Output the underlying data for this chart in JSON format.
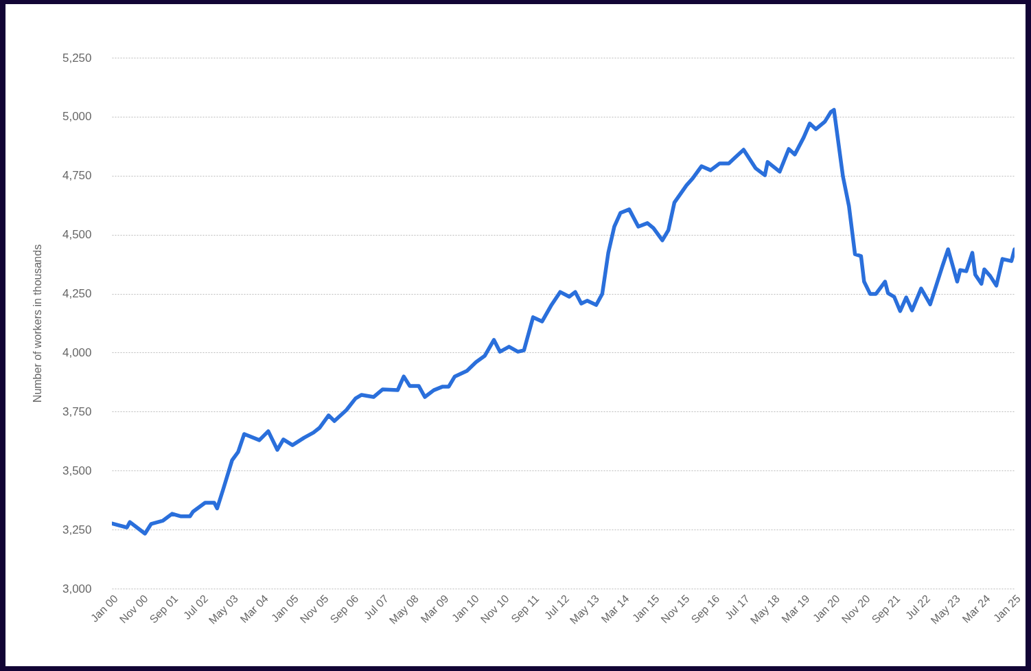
{
  "chart_data": {
    "type": "line",
    "ylabel": "Number of workers in thousands",
    "x": [
      "2000-01",
      "2000-06",
      "2000-07",
      "2000-09",
      "2000-12",
      "2001-02",
      "2001-06",
      "2001-09",
      "2001-12",
      "2002-03",
      "2002-04",
      "2002-08",
      "2002-11",
      "2002-12",
      "2003-02",
      "2003-05",
      "2003-07",
      "2003-09",
      "2004-02",
      "2004-05",
      "2004-08",
      "2004-10",
      "2005-01",
      "2005-05",
      "2005-08",
      "2005-10",
      "2006-01",
      "2006-03",
      "2006-07",
      "2006-10",
      "2006-12",
      "2007-04",
      "2007-07",
      "2007-12",
      "2008-02",
      "2008-04",
      "2008-07",
      "2008-09",
      "2008-12",
      "2009-03",
      "2009-05",
      "2009-07",
      "2009-11",
      "2010-02",
      "2010-05",
      "2010-08",
      "2010-10",
      "2011-01",
      "2011-04",
      "2011-06",
      "2011-09",
      "2011-12",
      "2012-03",
      "2012-06",
      "2012-09",
      "2012-11",
      "2013-01",
      "2013-03",
      "2013-06",
      "2013-08",
      "2013-10",
      "2013-12",
      "2014-02",
      "2014-05",
      "2014-08",
      "2014-11",
      "2015-01",
      "2015-04",
      "2015-06",
      "2015-08",
      "2015-12",
      "2016-02",
      "2016-05",
      "2016-08",
      "2016-11",
      "2017-02",
      "2017-04",
      "2017-07",
      "2017-11",
      "2018-02",
      "2018-03",
      "2018-07",
      "2018-10",
      "2018-12",
      "2019-03",
      "2019-05",
      "2019-07",
      "2019-10",
      "2019-12",
      "2020-01",
      "2020-04",
      "2020-06",
      "2020-08",
      "2020-10",
      "2020-11",
      "2021-01",
      "2021-03",
      "2021-06",
      "2021-07",
      "2021-09",
      "2021-11",
      "2022-01",
      "2022-03",
      "2022-06",
      "2022-09",
      "2023-01",
      "2023-03",
      "2023-06",
      "2023-07",
      "2023-09",
      "2023-11",
      "2023-12",
      "2024-02",
      "2024-03",
      "2024-05",
      "2024-07",
      "2024-09",
      "2024-12",
      "2025-01"
    ],
    "series": [
      {
        "color": "#2a6fdb",
        "values": [
          3276,
          3259,
          3282,
          3262,
          3233,
          3274,
          3288,
          3317,
          3306,
          3306,
          3326,
          3364,
          3364,
          3340,
          3422,
          3544,
          3579,
          3655,
          3629,
          3667,
          3588,
          3632,
          3608,
          3640,
          3661,
          3681,
          3734,
          3710,
          3757,
          3806,
          3821,
          3812,
          3844,
          3841,
          3899,
          3859,
          3859,
          3812,
          3841,
          3856,
          3856,
          3899,
          3923,
          3960,
          3987,
          4054,
          4004,
          4025,
          4004,
          4010,
          4150,
          4132,
          4199,
          4257,
          4237,
          4257,
          4208,
          4220,
          4202,
          4249,
          4423,
          4534,
          4592,
          4607,
          4534,
          4549,
          4528,
          4476,
          4519,
          4636,
          4709,
          4738,
          4790,
          4773,
          4802,
          4802,
          4825,
          4860,
          4781,
          4752,
          4808,
          4767,
          4863,
          4840,
          4912,
          4971,
          4947,
          4979,
          5020,
          5029,
          4747,
          4621,
          4417,
          4409,
          4301,
          4249,
          4249,
          4301,
          4252,
          4237,
          4176,
          4234,
          4179,
          4272,
          4205,
          4365,
          4438,
          4301,
          4350,
          4345,
          4423,
          4330,
          4292,
          4353,
          4324,
          4284,
          4397,
          4388,
          4438
        ]
      }
    ],
    "xlim": [
      "2000-01",
      "2025-01"
    ],
    "xticks": [
      {
        "value": "2000-01",
        "label": "Jan 00"
      },
      {
        "value": "2000-11",
        "label": "Nov 00"
      },
      {
        "value": "2001-09",
        "label": "Sep 01"
      },
      {
        "value": "2002-07",
        "label": "Jul 02"
      },
      {
        "value": "2003-05",
        "label": "May 03"
      },
      {
        "value": "2004-03",
        "label": "Mar 04"
      },
      {
        "value": "2005-01",
        "label": "Jan 05"
      },
      {
        "value": "2005-11",
        "label": "Nov 05"
      },
      {
        "value": "2006-09",
        "label": "Sep 06"
      },
      {
        "value": "2007-07",
        "label": "Jul 07"
      },
      {
        "value": "2008-05",
        "label": "May 08"
      },
      {
        "value": "2009-03",
        "label": "Mar 09"
      },
      {
        "value": "2010-01",
        "label": "Jan 10"
      },
      {
        "value": "2010-11",
        "label": "Nov 10"
      },
      {
        "value": "2011-09",
        "label": "Sep 11"
      },
      {
        "value": "2012-07",
        "label": "Jul 12"
      },
      {
        "value": "2013-05",
        "label": "May 13"
      },
      {
        "value": "2014-03",
        "label": "Mar 14"
      },
      {
        "value": "2015-01",
        "label": "Jan 15"
      },
      {
        "value": "2015-11",
        "label": "Nov 15"
      },
      {
        "value": "2016-09",
        "label": "Sep 16"
      },
      {
        "value": "2017-07",
        "label": "Jul 17"
      },
      {
        "value": "2018-05",
        "label": "May 18"
      },
      {
        "value": "2019-03",
        "label": "Mar 19"
      },
      {
        "value": "2020-01",
        "label": "Jan 20"
      },
      {
        "value": "2020-11",
        "label": "Nov 20"
      },
      {
        "value": "2021-09",
        "label": "Sep 21"
      },
      {
        "value": "2022-07",
        "label": "Jul 22"
      },
      {
        "value": "2023-05",
        "label": "May 23"
      },
      {
        "value": "2024-03",
        "label": "Mar 24"
      },
      {
        "value": "2025-01",
        "label": "Jan 25"
      }
    ],
    "ylim": [
      3000,
      5250
    ],
    "yticks": [
      {
        "value": 3000,
        "label": "3,000"
      },
      {
        "value": 3250,
        "label": "3,250"
      },
      {
        "value": 3500,
        "label": "3,500"
      },
      {
        "value": 3750,
        "label": "3,750"
      },
      {
        "value": 4000,
        "label": "4,000"
      },
      {
        "value": 4250,
        "label": "4,250"
      },
      {
        "value": 4500,
        "label": "4,500"
      },
      {
        "value": 4750,
        "label": "4,750"
      },
      {
        "value": 5000,
        "label": "5,000"
      },
      {
        "value": 5250,
        "label": "5,250"
      }
    ],
    "grid": "y",
    "line_style": "solid"
  }
}
